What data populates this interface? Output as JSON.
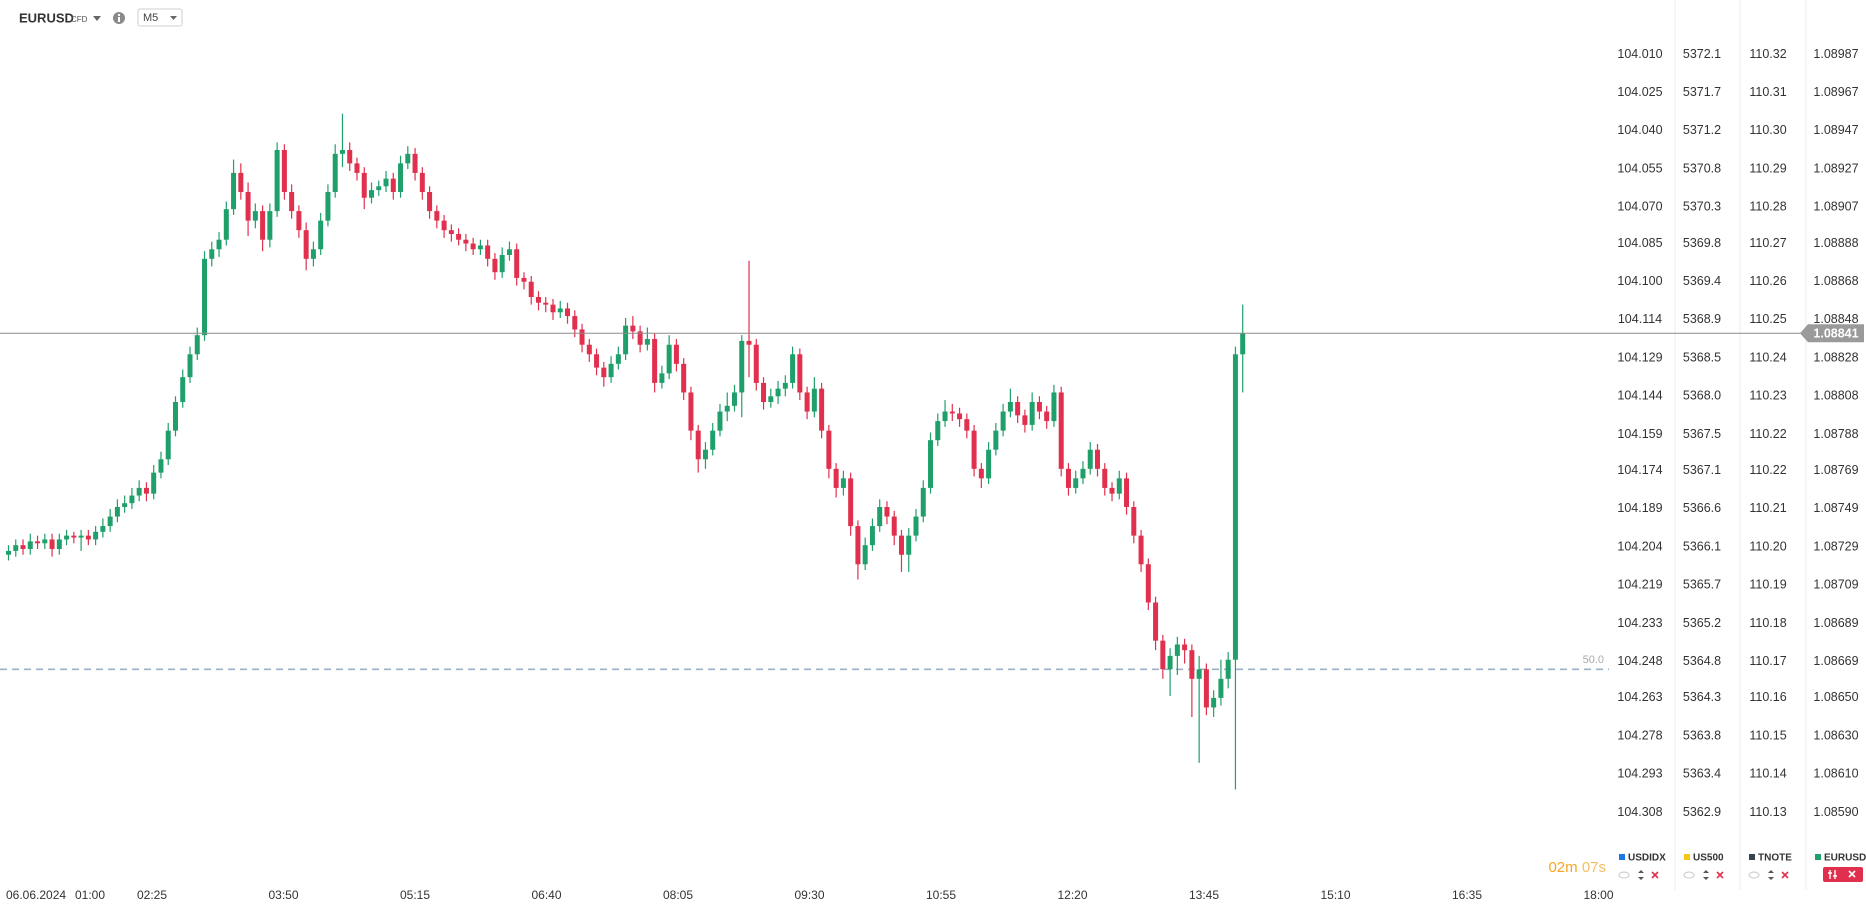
{
  "header": {
    "symbol": "EURUSD",
    "badge": "CFD",
    "timeframe": "M5"
  },
  "chart": {
    "type": "candlestick",
    "name": "EURUSD",
    "color": "#1fa06b",
    "colors": {
      "up": "#1fa06b",
      "down": "#e0304e"
    },
    "ylim": [
      1.08574,
      1.09003
    ],
    "yticks": [
      1.08987,
      1.08967,
      1.08947,
      1.08927,
      1.08907,
      1.08888,
      1.08868,
      1.08848,
      1.08828,
      1.08808,
      1.08788,
      1.08769,
      1.08749,
      1.08729,
      1.08709,
      1.08689,
      1.08669,
      {
        "value": 1.0865,
        "label": "1.08650"
      },
      {
        "value": 1.0863,
        "label": "1.08630"
      },
      {
        "value": 1.0861,
        "label": "1.08610"
      },
      {
        "value": 1.0859,
        "label": "1.08590"
      }
    ],
    "current_price": 1.08841,
    "level": {
      "label": "50.0",
      "price": 1.08665
    },
    "countdown": {
      "minutes": "02m",
      "seconds": "07s"
    },
    "date_label": "06.06.2024",
    "time_labels": [
      "01:00",
      "02:25",
      "03:50",
      "05:15",
      "06:40",
      "08:05",
      "09:30",
      "10:55",
      "12:20",
      "13:45",
      "15:10",
      "16:35",
      "18:00"
    ],
    "candles": [
      [
        1.08725,
        1.0873,
        1.08722,
        1.08727
      ],
      [
        1.08727,
        1.08733,
        1.08724,
        1.0873
      ],
      [
        1.0873,
        1.08733,
        1.08725,
        1.08728
      ],
      [
        1.08728,
        1.08736,
        1.08725,
        1.08732
      ],
      [
        1.08732,
        1.08735,
        1.08728,
        1.08731
      ],
      [
        1.08731,
        1.08736,
        1.08728,
        1.08733
      ],
      [
        1.08733,
        1.08736,
        1.08724,
        1.08728
      ],
      [
        1.08728,
        1.08736,
        1.08725,
        1.08733
      ],
      [
        1.08733,
        1.08738,
        1.0873,
        1.08735
      ],
      [
        1.08735,
        1.08737,
        1.08731,
        1.08734
      ],
      [
        1.08734,
        1.08738,
        1.08727,
        1.08735
      ],
      [
        1.08735,
        1.08738,
        1.0873,
        1.08733
      ],
      [
        1.08733,
        1.0874,
        1.0873,
        1.08737
      ],
      [
        1.08737,
        1.08744,
        1.08734,
        1.0874
      ],
      [
        1.0874,
        1.08749,
        1.08737,
        1.08745
      ],
      [
        1.08745,
        1.08754,
        1.08742,
        1.0875
      ],
      [
        1.0875,
        1.08756,
        1.08747,
        1.08752
      ],
      [
        1.08752,
        1.0876,
        1.08749,
        1.08756
      ],
      [
        1.08756,
        1.08764,
        1.08753,
        1.0876
      ],
      [
        1.0876,
        1.08763,
        1.08753,
        1.08757
      ],
      [
        1.08757,
        1.08772,
        1.08754,
        1.08768
      ],
      [
        1.08768,
        1.08779,
        1.08765,
        1.08775
      ],
      [
        1.08775,
        1.08794,
        1.08772,
        1.0879
      ],
      [
        1.0879,
        1.08808,
        1.08787,
        1.08805
      ],
      [
        1.08805,
        1.08822,
        1.08802,
        1.08818
      ],
      [
        1.08818,
        1.08834,
        1.08815,
        1.0883
      ],
      [
        1.0883,
        1.08844,
        1.08827,
        1.0884
      ],
      [
        1.0884,
        1.08884,
        1.08837,
        1.0888
      ],
      [
        1.0888,
        1.08889,
        1.08876,
        1.08885
      ],
      [
        1.08885,
        1.08894,
        1.08881,
        1.0889
      ],
      [
        1.0889,
        1.0891,
        1.08887,
        1.08906
      ],
      [
        1.08906,
        1.08932,
        1.08903,
        1.08925
      ],
      [
        1.08925,
        1.0893,
        1.08911,
        1.08915
      ],
      [
        1.08915,
        1.0892,
        1.08892,
        1.089
      ],
      [
        1.089,
        1.08909,
        1.08896,
        1.08905
      ],
      [
        1.08905,
        1.08908,
        1.08884,
        1.0889
      ],
      [
        1.0889,
        1.08909,
        1.08886,
        1.08905
      ],
      [
        1.08905,
        1.08941,
        1.08902,
        1.08937
      ],
      [
        1.08937,
        1.0894,
        1.08911,
        1.08915
      ],
      [
        1.08915,
        1.08919,
        1.08901,
        1.08905
      ],
      [
        1.08905,
        1.08908,
        1.08891,
        1.08895
      ],
      [
        1.08895,
        1.08899,
        1.08874,
        1.0888
      ],
      [
        1.0888,
        1.08889,
        1.08876,
        1.08885
      ],
      [
        1.08885,
        1.08904,
        1.08882,
        1.089
      ],
      [
        1.089,
        1.08919,
        1.08897,
        1.08915
      ],
      [
        1.08915,
        1.0894,
        1.08912,
        1.08935
      ],
      [
        1.08935,
        1.08956,
        1.08928,
        1.08937
      ],
      [
        1.08937,
        1.08941,
        1.08926,
        1.0893
      ],
      [
        1.0893,
        1.08933,
        1.08921,
        1.08925
      ],
      [
        1.08925,
        1.08928,
        1.08906,
        1.08912
      ],
      [
        1.08912,
        1.0892,
        1.08909,
        1.08916
      ],
      [
        1.08916,
        1.08921,
        1.08913,
        1.08918
      ],
      [
        1.08918,
        1.08926,
        1.08915,
        1.08922
      ],
      [
        1.08922,
        1.08925,
        1.08911,
        1.08915
      ],
      [
        1.08915,
        1.08934,
        1.08912,
        1.0893
      ],
      [
        1.0893,
        1.08939,
        1.08927,
        1.08935
      ],
      [
        1.08935,
        1.08938,
        1.08921,
        1.08925
      ],
      [
        1.08925,
        1.08928,
        1.08911,
        1.08915
      ],
      [
        1.08915,
        1.08918,
        1.08901,
        1.08905
      ],
      [
        1.08905,
        1.08908,
        1.08896,
        1.089
      ],
      [
        1.089,
        1.08903,
        1.08891,
        1.08895
      ],
      [
        1.08895,
        1.08898,
        1.08889,
        1.08893
      ],
      [
        1.08893,
        1.08896,
        1.08887,
        1.0889
      ],
      [
        1.0889,
        1.08893,
        1.08884,
        1.08888
      ],
      [
        1.08888,
        1.08891,
        1.08882,
        1.08885
      ],
      [
        1.08885,
        1.0889,
        1.08882,
        1.08887
      ],
      [
        1.08887,
        1.0889,
        1.08876,
        1.0888
      ],
      [
        1.0888,
        1.08883,
        1.08869,
        1.08873
      ],
      [
        1.08873,
        1.08886,
        1.0887,
        1.08882
      ],
      [
        1.08882,
        1.08889,
        1.08879,
        1.08885
      ],
      [
        1.08885,
        1.08888,
        1.08866,
        1.0887
      ],
      [
        1.0887,
        1.08873,
        1.08864,
        1.08868
      ],
      [
        1.08868,
        1.08871,
        1.08856,
        1.0886
      ],
      [
        1.0886,
        1.08863,
        1.08853,
        1.08857
      ],
      [
        1.08857,
        1.0886,
        1.08852,
        1.08856
      ],
      [
        1.08856,
        1.08859,
        1.08848,
        1.08852
      ],
      [
        1.08852,
        1.08858,
        1.08849,
        1.08854
      ],
      [
        1.08854,
        1.08857,
        1.08846,
        1.0885
      ],
      [
        1.0885,
        1.08853,
        1.08839,
        1.08843
      ],
      [
        1.08843,
        1.08846,
        1.08831,
        1.08835
      ],
      [
        1.08835,
        1.08838,
        1.08826,
        1.0883
      ],
      [
        1.0883,
        1.08833,
        1.08819,
        1.08823
      ],
      [
        1.08823,
        1.08826,
        1.08813,
        1.08818
      ],
      [
        1.08818,
        1.08829,
        1.08815,
        1.08825
      ],
      [
        1.08825,
        1.08834,
        1.08822,
        1.0883
      ],
      [
        1.0883,
        1.08849,
        1.08827,
        1.08845
      ],
      [
        1.08845,
        1.0885,
        1.08838,
        1.08842
      ],
      [
        1.08842,
        1.08845,
        1.08831,
        1.08835
      ],
      [
        1.08835,
        1.08844,
        1.08832,
        1.08838
      ],
      [
        1.08838,
        1.08841,
        1.0881,
        1.08815
      ],
      [
        1.08815,
        1.08824,
        1.08812,
        1.0882
      ],
      [
        1.0882,
        1.0884,
        1.08817,
        1.08835
      ],
      [
        1.08835,
        1.08838,
        1.08821,
        1.08825
      ],
      [
        1.08825,
        1.08828,
        1.08806,
        1.0881
      ],
      [
        1.0881,
        1.08813,
        1.08785,
        1.0879
      ],
      [
        1.0879,
        1.08793,
        1.08768,
        1.08775
      ],
      [
        1.08775,
        1.08784,
        1.0877,
        1.0878
      ],
      [
        1.0878,
        1.08794,
        1.08777,
        1.0879
      ],
      [
        1.0879,
        1.08804,
        1.08787,
        1.088
      ],
      [
        1.088,
        1.0881,
        1.08795,
        1.08803
      ],
      [
        1.08803,
        1.08814,
        1.088,
        1.0881
      ],
      [
        1.0881,
        1.0884,
        1.08797,
        1.08837
      ],
      [
        1.08837,
        1.08879,
        1.08818,
        1.08835
      ],
      [
        1.08835,
        1.08838,
        1.08811,
        1.08815
      ],
      [
        1.08815,
        1.08818,
        1.08801,
        1.08805
      ],
      [
        1.08805,
        1.08812,
        1.08802,
        1.08808
      ],
      [
        1.08808,
        1.08816,
        1.08804,
        1.08812
      ],
      [
        1.08812,
        1.08819,
        1.08808,
        1.08815
      ],
      [
        1.08815,
        1.08834,
        1.08812,
        1.0883
      ],
      [
        1.0883,
        1.08833,
        1.08806,
        1.0881
      ],
      [
        1.0881,
        1.08813,
        1.08796,
        1.088
      ],
      [
        1.088,
        1.08818,
        1.08797,
        1.08812
      ],
      [
        1.08812,
        1.08815,
        1.08786,
        1.0879
      ],
      [
        1.0879,
        1.08793,
        1.08765,
        1.0877
      ],
      [
        1.0877,
        1.08773,
        1.08755,
        1.0876
      ],
      [
        1.0876,
        1.08769,
        1.08756,
        1.08765
      ],
      [
        1.08765,
        1.08768,
        1.08735,
        1.0874
      ],
      [
        1.0874,
        1.08743,
        1.08712,
        1.0872
      ],
      [
        1.0872,
        1.08734,
        1.08717,
        1.0873
      ],
      [
        1.0873,
        1.08744,
        1.08727,
        1.0874
      ],
      [
        1.0874,
        1.08754,
        1.08737,
        1.0875
      ],
      [
        1.0875,
        1.08753,
        1.08741,
        1.08745
      ],
      [
        1.08745,
        1.08748,
        1.0873,
        1.08735
      ],
      [
        1.08735,
        1.08738,
        1.08716,
        1.08725
      ],
      [
        1.08725,
        1.08739,
        1.08716,
        1.08735
      ],
      [
        1.08735,
        1.08749,
        1.08732,
        1.08745
      ],
      [
        1.08745,
        1.08764,
        1.08742,
        1.0876
      ],
      [
        1.0876,
        1.08789,
        1.08757,
        1.08785
      ],
      [
        1.08785,
        1.08799,
        1.08782,
        1.08795
      ],
      [
        1.08795,
        1.08806,
        1.08792,
        1.088
      ],
      [
        1.088,
        1.08804,
        1.08795,
        1.08799
      ],
      [
        1.08799,
        1.08802,
        1.08792,
        1.08796
      ],
      [
        1.08796,
        1.08799,
        1.08786,
        1.0879
      ],
      [
        1.0879,
        1.08793,
        1.08766,
        1.0877
      ],
      [
        1.0877,
        1.08773,
        1.0876,
        1.08765
      ],
      [
        1.08765,
        1.08784,
        1.08762,
        1.0878
      ],
      [
        1.0878,
        1.08794,
        1.08777,
        1.0879
      ],
      [
        1.0879,
        1.08804,
        1.08787,
        1.088
      ],
      [
        1.088,
        1.08812,
        1.08797,
        1.08805
      ],
      [
        1.08805,
        1.08808,
        1.08794,
        1.08798
      ],
      [
        1.08798,
        1.08801,
        1.08789,
        1.08793
      ],
      [
        1.08793,
        1.0881,
        1.0879,
        1.08805
      ],
      [
        1.08805,
        1.08808,
        1.08796,
        1.088
      ],
      [
        1.088,
        1.08803,
        1.08791,
        1.08795
      ],
      [
        1.08795,
        1.08814,
        1.08792,
        1.0881
      ],
      [
        1.0881,
        1.08813,
        1.08766,
        1.0877
      ],
      [
        1.0877,
        1.08773,
        1.08756,
        1.0876
      ],
      [
        1.0876,
        1.08769,
        1.08757,
        1.08765
      ],
      [
        1.08765,
        1.08774,
        1.08762,
        1.0877
      ],
      [
        1.0877,
        1.08784,
        1.08767,
        1.0878
      ],
      [
        1.0878,
        1.08783,
        1.08766,
        1.0877
      ],
      [
        1.0877,
        1.08773,
        1.08756,
        1.0876
      ],
      [
        1.0876,
        1.08763,
        1.08753,
        1.08757
      ],
      [
        1.08757,
        1.08769,
        1.08754,
        1.08765
      ],
      [
        1.08765,
        1.08768,
        1.08746,
        1.0875
      ],
      [
        1.0875,
        1.08753,
        1.08731,
        1.08735
      ],
      [
        1.08735,
        1.08738,
        1.08716,
        1.0872
      ],
      [
        1.0872,
        1.08723,
        1.08696,
        1.087
      ],
      [
        1.087,
        1.08703,
        1.08675,
        1.0868
      ],
      [
        1.0868,
        1.08683,
        1.0866,
        1.08665
      ],
      [
        1.08665,
        1.08676,
        1.08651,
        1.08672
      ],
      [
        1.08672,
        1.08682,
        1.08662,
        1.08678
      ],
      [
        1.08678,
        1.08681,
        1.08668,
        1.08675
      ],
      [
        1.08675,
        1.08678,
        1.0864,
        1.0866
      ],
      [
        1.0866,
        1.08672,
        1.08616,
        1.08665
      ],
      [
        1.08665,
        1.08668,
        1.08641,
        1.08645
      ],
      [
        1.08645,
        1.08654,
        1.0864,
        1.0865
      ],
      [
        1.0865,
        1.0867,
        1.08646,
        1.0866
      ],
      [
        1.0866,
        1.08674,
        1.08655,
        1.0867
      ],
      [
        1.0867,
        1.08834,
        1.08602,
        1.0883
      ],
      [
        1.0883,
        1.08856,
        1.0881,
        1.08841
      ]
    ]
  },
  "compare": [
    {
      "name": "USDIDX",
      "color": "#1e78e6",
      "labels": [
        "104.010",
        "104.025",
        "104.040",
        "104.055",
        "104.070",
        "104.085",
        "104.100",
        "104.114",
        "104.129",
        "104.144",
        "104.159",
        "104.174",
        "104.189",
        "104.204",
        "104.219",
        "104.233",
        "104.248",
        "104.263",
        "104.278",
        "104.293",
        "104.308"
      ]
    },
    {
      "name": "US500",
      "color": "#f5c518",
      "labels": [
        "5372.1",
        "5371.7",
        "5371.2",
        "5370.8",
        "5370.3",
        "5369.8",
        "5369.4",
        "5368.9",
        "5368.5",
        "5368.0",
        "5367.5",
        "5367.1",
        "5366.6",
        "5366.1",
        "5365.7",
        "5365.2",
        "5364.8",
        "5364.3",
        "5363.8",
        "5363.4",
        "5362.9"
      ]
    },
    {
      "name": "TNOTE",
      "color": "#37434f",
      "labels": [
        "110.32",
        "110.31",
        "110.30",
        "110.29",
        "110.28",
        "110.27",
        "110.26",
        "110.25",
        "110.24",
        "110.23",
        "110.22",
        "110.22",
        "110.21",
        "110.20",
        "110.19",
        "110.18",
        "110.17",
        "110.16",
        "110.15",
        "110.14",
        "110.13"
      ]
    }
  ]
}
